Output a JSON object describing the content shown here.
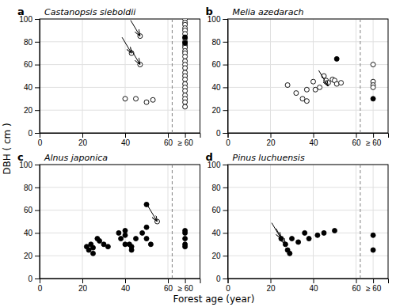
{
  "xlabel": "Forest age (year)",
  "ylabel": "DBH  ( cm )",
  "chart_data": [
    {
      "type": "scatter",
      "title": "Castanopsis sieboldii",
      "label": "a",
      "series": [
        {
          "marker": "circle-open",
          "x": [
            40,
            45,
            50,
            53,
            43,
            47,
            47,
            68,
            68,
            68,
            68,
            68,
            68,
            68,
            68,
            68,
            68,
            68,
            68,
            68,
            68,
            68,
            68,
            68,
            68,
            68,
            68,
            68,
            68,
            68,
            68,
            68,
            68
          ],
          "values": [
            30,
            30,
            27,
            29,
            70,
            85,
            60,
            100,
            97,
            95,
            92,
            90,
            87,
            83,
            80,
            77,
            75,
            72,
            70,
            67,
            63,
            60,
            57,
            53,
            50,
            47,
            43,
            40,
            37,
            33,
            30,
            27,
            23
          ]
        },
        {
          "marker": "circle-filled",
          "x": [
            68,
            68
          ],
          "values": [
            84,
            79
          ]
        }
      ],
      "annotations": [
        {
          "x": 43,
          "y": 70
        },
        {
          "x": 47,
          "y": 85
        },
        {
          "x": 47,
          "y": 60
        }
      ],
      "reference_lines": [
        {
          "x": 62,
          "line_style": "dashed"
        }
      ],
      "xlim": [
        0,
        75
      ],
      "ylim": [
        0,
        100
      ],
      "xticks": [
        0,
        20,
        40,
        60,
        {
          "value": 68,
          "label": "≥ 60"
        }
      ],
      "yticks": [
        0,
        20,
        40,
        60,
        80,
        100
      ],
      "grid": true
    },
    {
      "type": "scatter",
      "title": "Melia azedarach",
      "label": "b",
      "series": [
        {
          "marker": "circle-open",
          "x": [
            28,
            32,
            35,
            37,
            37,
            40,
            41,
            43,
            45,
            46,
            47,
            49,
            50,
            51,
            53,
            68,
            68,
            68,
            68
          ],
          "values": [
            42,
            35,
            30,
            38,
            28,
            45,
            38,
            40,
            50,
            46,
            44,
            47,
            46,
            43,
            44,
            60,
            45,
            42,
            40
          ]
        },
        {
          "marker": "circle-filled",
          "x": [
            51,
            68
          ],
          "values": [
            65,
            30
          ]
        }
      ],
      "annotations": [
        {
          "x": 47,
          "y": 41
        }
      ],
      "reference_lines": [
        {
          "x": 62,
          "line_style": "dashed"
        }
      ],
      "xlim": [
        0,
        75
      ],
      "ylim": [
        0,
        100
      ],
      "xticks": [
        0,
        20,
        40,
        60,
        {
          "value": 68,
          "label": "≥ 60"
        }
      ],
      "yticks": [
        0,
        20,
        40,
        60,
        80,
        100
      ],
      "grid": true
    },
    {
      "type": "scatter",
      "title": "Alnus japonica",
      "label": "c",
      "series": [
        {
          "marker": "circle-open",
          "x": [
            55
          ],
          "values": [
            50
          ]
        },
        {
          "marker": "circle-filled",
          "x": [
            22,
            23,
            24,
            25,
            25,
            27,
            28,
            30,
            32,
            37,
            38,
            40,
            40,
            40,
            42,
            43,
            43,
            45,
            48,
            50,
            50,
            50,
            52,
            68,
            68,
            68,
            68,
            68
          ],
          "values": [
            28,
            25,
            30,
            27,
            22,
            35,
            33,
            30,
            28,
            40,
            35,
            42,
            38,
            30,
            30,
            28,
            25,
            35,
            40,
            65,
            45,
            35,
            30,
            42,
            40,
            35,
            30,
            28
          ]
        }
      ],
      "annotations": [
        {
          "x": 55,
          "y": 50
        }
      ],
      "reference_lines": [
        {
          "x": 62,
          "line_style": "dashed"
        }
      ],
      "xlim": [
        0,
        75
      ],
      "ylim": [
        0,
        100
      ],
      "xticks": [
        0,
        20,
        40,
        60,
        {
          "value": 68,
          "label": "≥ 60"
        }
      ],
      "yticks": [
        0,
        20,
        40,
        60,
        80,
        100
      ],
      "grid": true
    },
    {
      "type": "scatter",
      "title": "Pinus luchuensis",
      "label": "d",
      "series": [
        {
          "marker": "circle-open",
          "x": [],
          "values": []
        },
        {
          "marker": "circle-filled",
          "x": [
            25,
            27,
            28,
            29,
            30,
            33,
            36,
            38,
            42,
            45,
            50,
            68,
            68
          ],
          "values": [
            35,
            30,
            25,
            22,
            35,
            32,
            40,
            35,
            38,
            40,
            42,
            25,
            38
          ]
        }
      ],
      "annotations": [
        {
          "x": 25,
          "y": 35
        },
        {
          "x": 27,
          "y": 30
        }
      ],
      "reference_lines": [
        {
          "x": 62,
          "line_style": "dashed"
        }
      ],
      "xlim": [
        0,
        75
      ],
      "ylim": [
        0,
        100
      ],
      "xticks": [
        0,
        20,
        40,
        60,
        {
          "value": 68,
          "label": "≥ 60"
        }
      ],
      "yticks": [
        0,
        20,
        40,
        60,
        80,
        100
      ],
      "grid": true
    }
  ]
}
